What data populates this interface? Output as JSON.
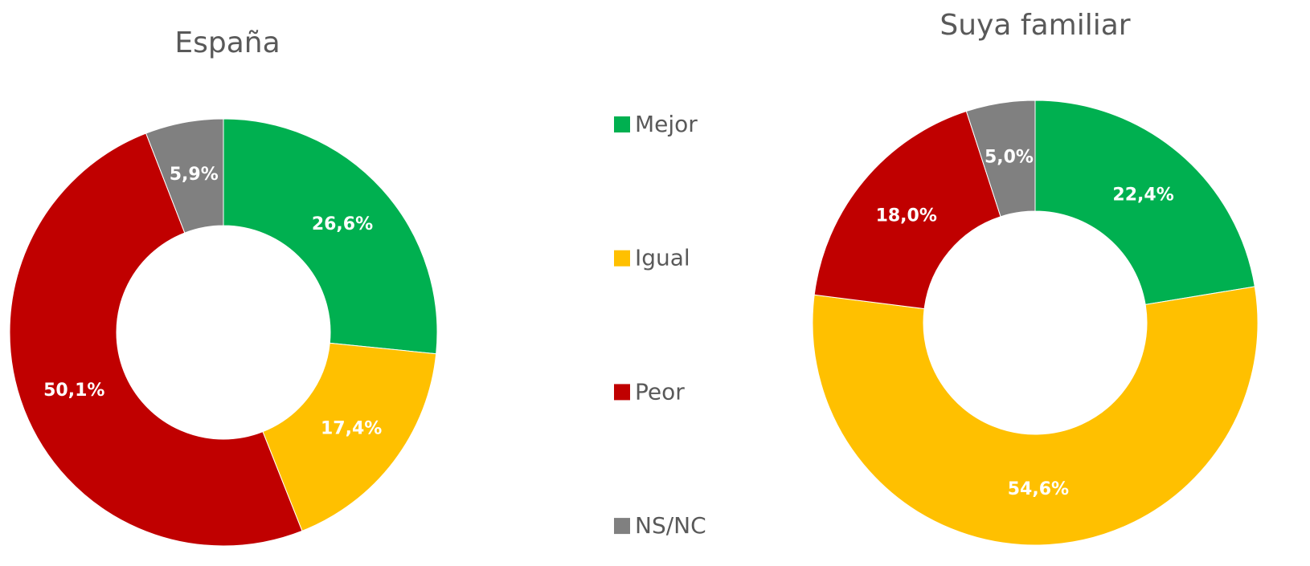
{
  "chart_data": [
    {
      "type": "donut",
      "title": "España",
      "categories": [
        "Mejor",
        "Igual",
        "Peor",
        "NS/NC"
      ],
      "values": [
        26.6,
        17.4,
        50.1,
        5.9
      ],
      "value_labels": [
        "26,6%",
        "17,4%",
        "50,1%",
        "5,9%"
      ],
      "colors": [
        "#00b050",
        "#ffc000",
        "#c00000",
        "#808080"
      ]
    },
    {
      "type": "donut",
      "title": "Suya familiar",
      "categories": [
        "Mejor",
        "Igual",
        "Peor",
        "NS/NC"
      ],
      "values": [
        22.4,
        54.6,
        18.0,
        5.0
      ],
      "value_labels": [
        "22,4%",
        "54,6%",
        "18,0%",
        "5,0%"
      ],
      "colors": [
        "#00b050",
        "#ffc000",
        "#c00000",
        "#808080"
      ]
    }
  ]
}
